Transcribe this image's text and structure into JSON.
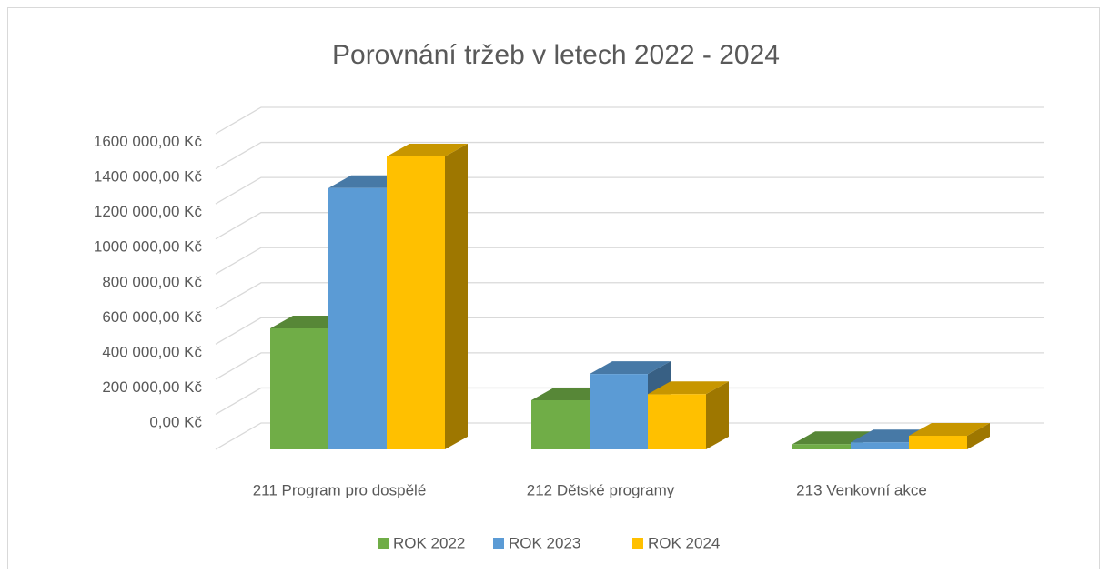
{
  "chart_data": {
    "type": "bar3d",
    "title": "Porovnání tržeb v letech 2022 - 2024",
    "categories": [
      "211 Program pro dospělé",
      "212 Dětské programy",
      "213 Venkovní akce"
    ],
    "series": [
      {
        "name": "ROK 2022",
        "color": "#70ad47",
        "values": [
          690000,
          280000,
          30000
        ]
      },
      {
        "name": "ROK 2023",
        "color": "#5b9bd5",
        "values": [
          1490000,
          430000,
          40000
        ]
      },
      {
        "name": "ROK 2024",
        "color": "#ffc000",
        "values": [
          1670000,
          315000,
          78000
        ]
      }
    ],
    "ylim": [
      0,
      1800000
    ],
    "yticks": [
      {
        "value": 0,
        "label": "0,00 Kč"
      },
      {
        "value": 200000,
        "label": "200 000,00 Kč"
      },
      {
        "value": 400000,
        "label": "400 000,00 Kč"
      },
      {
        "value": 600000,
        "label": "600 000,00 Kč"
      },
      {
        "value": 800000,
        "label": "800 000,00 Kč"
      },
      {
        "value": 1000000,
        "label": "1000 000,00 Kč"
      },
      {
        "value": 1200000,
        "label": "1200 000,00 Kč"
      },
      {
        "value": 1400000,
        "label": "1400 000,00 Kč"
      },
      {
        "value": 1600000,
        "label": "1600 000,00 Kč"
      }
    ],
    "grid": true,
    "legend": "bottom"
  }
}
